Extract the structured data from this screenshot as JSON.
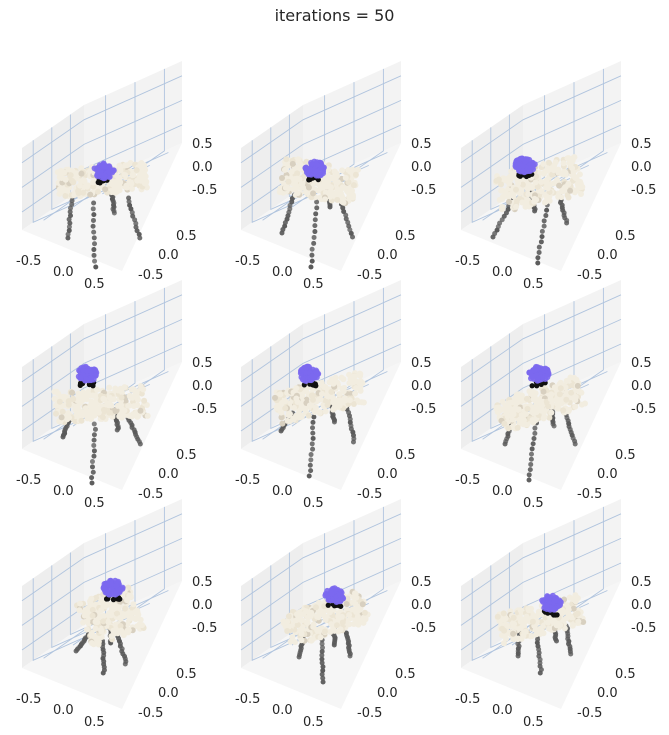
{
  "figure": {
    "suptitle": "iterations = 50",
    "colors": {
      "pane_back": "#eeeeee",
      "pane_side": "#f3f3f3",
      "pane_floor": "#f6f6f6",
      "gridline": "#b0c4de",
      "tabletop": "#f2ede0",
      "legs": "#5a5a5a",
      "highlight": "#7b68ee"
    }
  },
  "chart_data": [
    {
      "type": "scatter",
      "projection": "3d",
      "title": "",
      "x_ticks": [
        "-0.5",
        "0.0",
        "0.5"
      ],
      "y_ticks": [
        "0.5",
        "0.0",
        "-0.5"
      ],
      "z_ticks": [
        "0.5",
        "0.0",
        "-0.5"
      ],
      "xlim": [
        -0.8,
        0.8
      ],
      "ylim": [
        -0.8,
        0.8
      ],
      "zlim": [
        -0.8,
        0.8
      ],
      "grid": true,
      "object": "table point cloud",
      "series": [
        {
          "color": "#f2ede0"
        },
        {
          "color": "#5a5a5a"
        },
        {
          "color": "#7b68ee"
        }
      ]
    },
    {
      "type": "scatter",
      "projection": "3d",
      "title": "",
      "x_ticks": [
        "-0.5",
        "0.0",
        "0.5"
      ],
      "y_ticks": [
        "0.5",
        "0.0",
        "-0.5"
      ],
      "z_ticks": [
        "0.5",
        "0.0",
        "-0.5"
      ],
      "xlim": [
        -0.8,
        0.8
      ],
      "ylim": [
        -0.8,
        0.8
      ],
      "zlim": [
        -0.8,
        0.8
      ],
      "grid": true,
      "object": "table point cloud",
      "series": [
        {
          "color": "#f2ede0"
        },
        {
          "color": "#5a5a5a"
        },
        {
          "color": "#7b68ee"
        }
      ]
    },
    {
      "type": "scatter",
      "projection": "3d",
      "title": "",
      "x_ticks": [
        "-0.5",
        "0.0",
        "0.5"
      ],
      "y_ticks": [
        "0.5",
        "0.0",
        "-0.5"
      ],
      "z_ticks": [
        "0.5",
        "0.0",
        "-0.5"
      ],
      "xlim": [
        -0.8,
        0.8
      ],
      "ylim": [
        -0.8,
        0.8
      ],
      "zlim": [
        -0.8,
        0.8
      ],
      "grid": true,
      "object": "table point cloud",
      "series": [
        {
          "color": "#f2ede0"
        },
        {
          "color": "#5a5a5a"
        },
        {
          "color": "#7b68ee"
        }
      ]
    },
    {
      "type": "scatter",
      "projection": "3d",
      "title": "",
      "x_ticks": [
        "-0.5",
        "0.0",
        "0.5"
      ],
      "y_ticks": [
        "0.5",
        "0.0",
        "-0.5"
      ],
      "z_ticks": [
        "0.5",
        "0.0",
        "-0.5"
      ],
      "xlim": [
        -0.8,
        0.8
      ],
      "ylim": [
        -0.8,
        0.8
      ],
      "zlim": [
        -0.8,
        0.8
      ],
      "grid": true,
      "object": "table point cloud",
      "series": [
        {
          "color": "#f2ede0"
        },
        {
          "color": "#5a5a5a"
        },
        {
          "color": "#7b68ee"
        }
      ]
    },
    {
      "type": "scatter",
      "projection": "3d",
      "title": "",
      "x_ticks": [
        "-0.5",
        "0.0",
        "0.5"
      ],
      "y_ticks": [
        "0.5",
        "0.0",
        "-0.5"
      ],
      "z_ticks": [
        "0.5",
        "0.0",
        "-0.5"
      ],
      "xlim": [
        -0.8,
        0.8
      ],
      "ylim": [
        -0.8,
        0.8
      ],
      "zlim": [
        -0.8,
        0.8
      ],
      "grid": true,
      "object": "table point cloud",
      "series": [
        {
          "color": "#f2ede0"
        },
        {
          "color": "#5a5a5a"
        },
        {
          "color": "#7b68ee"
        }
      ]
    },
    {
      "type": "scatter",
      "projection": "3d",
      "title": "",
      "x_ticks": [
        "-0.5",
        "0.0",
        "0.5"
      ],
      "y_ticks": [
        "0.5",
        "0.0",
        "-0.5"
      ],
      "z_ticks": [
        "0.5",
        "0.0",
        "-0.5"
      ],
      "xlim": [
        -0.8,
        0.8
      ],
      "ylim": [
        -0.8,
        0.8
      ],
      "zlim": [
        -0.8,
        0.8
      ],
      "grid": true,
      "object": "table point cloud",
      "series": [
        {
          "color": "#f2ede0"
        },
        {
          "color": "#5a5a5a"
        },
        {
          "color": "#7b68ee"
        }
      ]
    },
    {
      "type": "scatter",
      "projection": "3d",
      "title": "",
      "x_ticks": [
        "-0.5",
        "0.0",
        "0.5"
      ],
      "y_ticks": [
        "0.5",
        "0.0",
        "-0.5"
      ],
      "z_ticks": [
        "0.5",
        "0.0",
        "-0.5"
      ],
      "xlim": [
        -0.8,
        0.8
      ],
      "ylim": [
        -0.8,
        0.8
      ],
      "zlim": [
        -0.8,
        0.8
      ],
      "grid": true,
      "object": "table point cloud",
      "series": [
        {
          "color": "#f2ede0"
        },
        {
          "color": "#5a5a5a"
        },
        {
          "color": "#7b68ee"
        }
      ]
    },
    {
      "type": "scatter",
      "projection": "3d",
      "title": "",
      "x_ticks": [
        "-0.5",
        "0.0",
        "0.5"
      ],
      "y_ticks": [
        "0.5",
        "0.0",
        "-0.5"
      ],
      "z_ticks": [
        "0.5",
        "0.0",
        "-0.5"
      ],
      "xlim": [
        -0.8,
        0.8
      ],
      "ylim": [
        -0.8,
        0.8
      ],
      "zlim": [
        -0.8,
        0.8
      ],
      "grid": true,
      "object": "table point cloud",
      "series": [
        {
          "color": "#f2ede0"
        },
        {
          "color": "#5a5a5a"
        },
        {
          "color": "#7b68ee"
        }
      ]
    },
    {
      "type": "scatter",
      "projection": "3d",
      "title": "",
      "x_ticks": [
        "-0.5",
        "0.0",
        "0.5"
      ],
      "y_ticks": [
        "0.5",
        "0.0",
        "-0.5"
      ],
      "z_ticks": [
        "0.5",
        "0.0",
        "-0.5"
      ],
      "xlim": [
        -0.8,
        0.8
      ],
      "ylim": [
        -0.8,
        0.8
      ],
      "zlim": [
        -0.8,
        0.8
      ],
      "grid": true,
      "object": "table point cloud",
      "series": [
        {
          "color": "#f2ede0"
        },
        {
          "color": "#5a5a5a"
        },
        {
          "color": "#7b68ee"
        }
      ]
    }
  ]
}
